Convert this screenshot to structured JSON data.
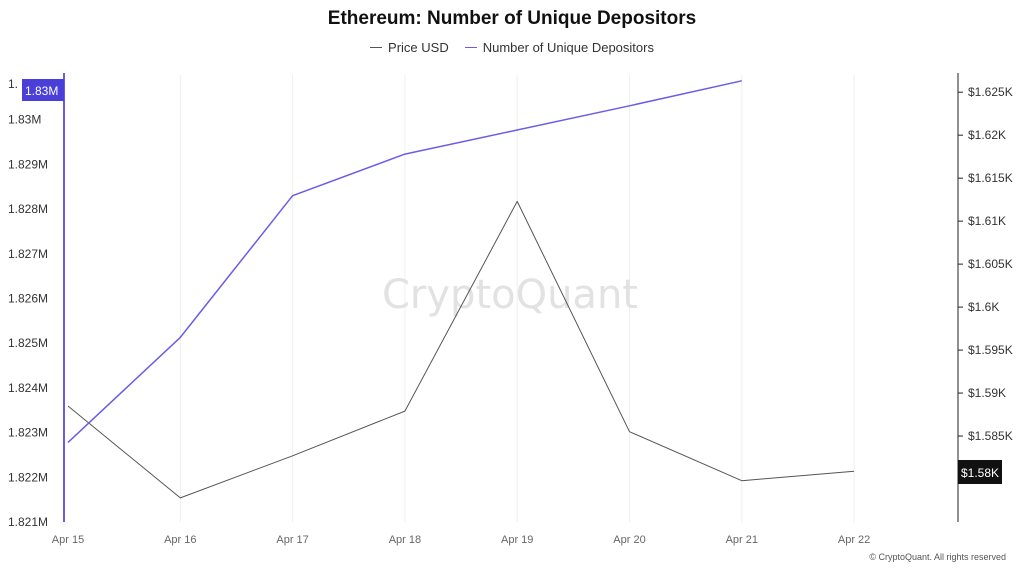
{
  "colors": {
    "price": "#555555",
    "depositors": "#6b5ce7",
    "left_badge": "#4a3fd9",
    "right_badge": "#111111"
  },
  "chart_data": {
    "type": "line",
    "title": "Ethereum: Number of Unique Depositors",
    "categories": [
      "Apr 15",
      "Apr 16",
      "Apr 17",
      "Apr 18",
      "Apr 19",
      "Apr 20",
      "Apr 21",
      "Apr 22"
    ],
    "series": [
      {
        "name": "Price USD",
        "axis": "right",
        "values": [
          1588.5,
          1577.8,
          1582.7,
          1587.9,
          1612.3,
          1585.5,
          1579.8,
          1580.9
        ]
      },
      {
        "name": "Number of Unique Depositors",
        "axis": "left",
        "values": [
          1822780,
          1825130,
          1828300,
          1829230,
          1829770,
          1830310,
          1830870,
          null
        ]
      }
    ],
    "y_left": {
      "ticks": [
        "1.821M",
        "1.822M",
        "1.823M",
        "1.824M",
        "1.825M",
        "1.826M",
        "1.827M",
        "1.828M",
        "1.829M",
        "1.83M"
      ],
      "tick_values": [
        1821000,
        1822000,
        1823000,
        1824000,
        1825000,
        1826000,
        1827000,
        1828000,
        1829000,
        1830000
      ],
      "ylim": [
        1821000,
        1831000
      ],
      "top_tick_partial": "1."
    },
    "y_right": {
      "ticks": [
        "$1.585K",
        "$1.59K",
        "$1.595K",
        "$1.6K",
        "$1.605K",
        "$1.61K",
        "$1.615K",
        "$1.62K",
        "$1.625K"
      ],
      "tick_values": [
        1585,
        1590,
        1595,
        1600,
        1605,
        1610,
        1615,
        1620,
        1625
      ],
      "ylim": [
        1575,
        1627
      ]
    },
    "badges": {
      "left": "1.83M",
      "right": "$1.58K"
    },
    "grid": "vertical",
    "legend_position": "top-center"
  },
  "watermark": "CryptoQuant",
  "copyright": "© CryptoQuant. All rights reserved"
}
